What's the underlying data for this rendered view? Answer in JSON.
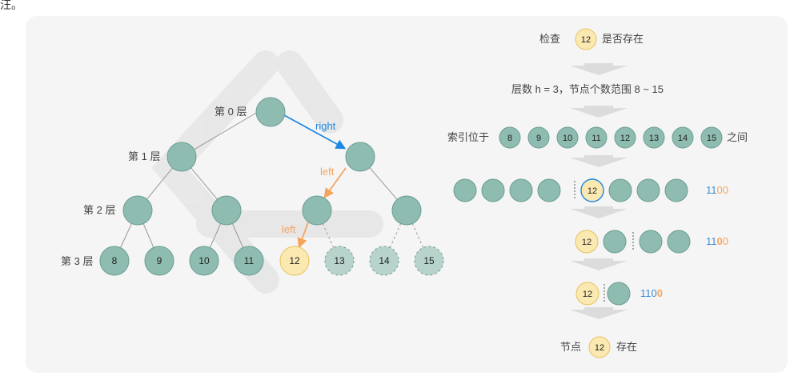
{
  "top_fragment": "汪。",
  "colors": {
    "node_fill": "#8fbcb1",
    "node_stroke": "#6a9d92",
    "target_fill": "#fbe9b2",
    "target_stroke": "#e5c25e",
    "right_arrow": "#1e88e5",
    "left_arrow": "#f5a45c",
    "flow_arrow": "#dcdcdc",
    "bits_blue": "#3d8bd6",
    "bits_orange": "#f5a45c"
  },
  "tree": {
    "levels": [
      "第 0 层",
      "第 1 层",
      "第 2 层",
      "第 3 层"
    ],
    "right_label": "right",
    "left_label_1": "left",
    "left_label_2": "left",
    "leaves": [
      "8",
      "9",
      "10",
      "11",
      "12",
      "13",
      "14",
      "15"
    ]
  },
  "steps": {
    "check_pre": "检查",
    "check_node": "12",
    "check_post": "是否存在",
    "layer_text": "层数 h = 3，节点个数范围 8 ~ 15",
    "index_pre": "索引位于",
    "index_nodes": [
      "8",
      "9",
      "10",
      "11",
      "12",
      "13",
      "14",
      "15"
    ],
    "index_post": "之间",
    "row1_node": "12",
    "row1_bits_a": "11",
    "row1_bits_b": "00",
    "row2_node": "12",
    "row2_bits_a": "11",
    "row2_bits_b": "0",
    "row2_bits_c": "0",
    "row3_node": "12",
    "row3_bits_a": "110",
    "row3_bits_b": "0",
    "result_pre": "节点",
    "result_node": "12",
    "result_post": "存在"
  }
}
